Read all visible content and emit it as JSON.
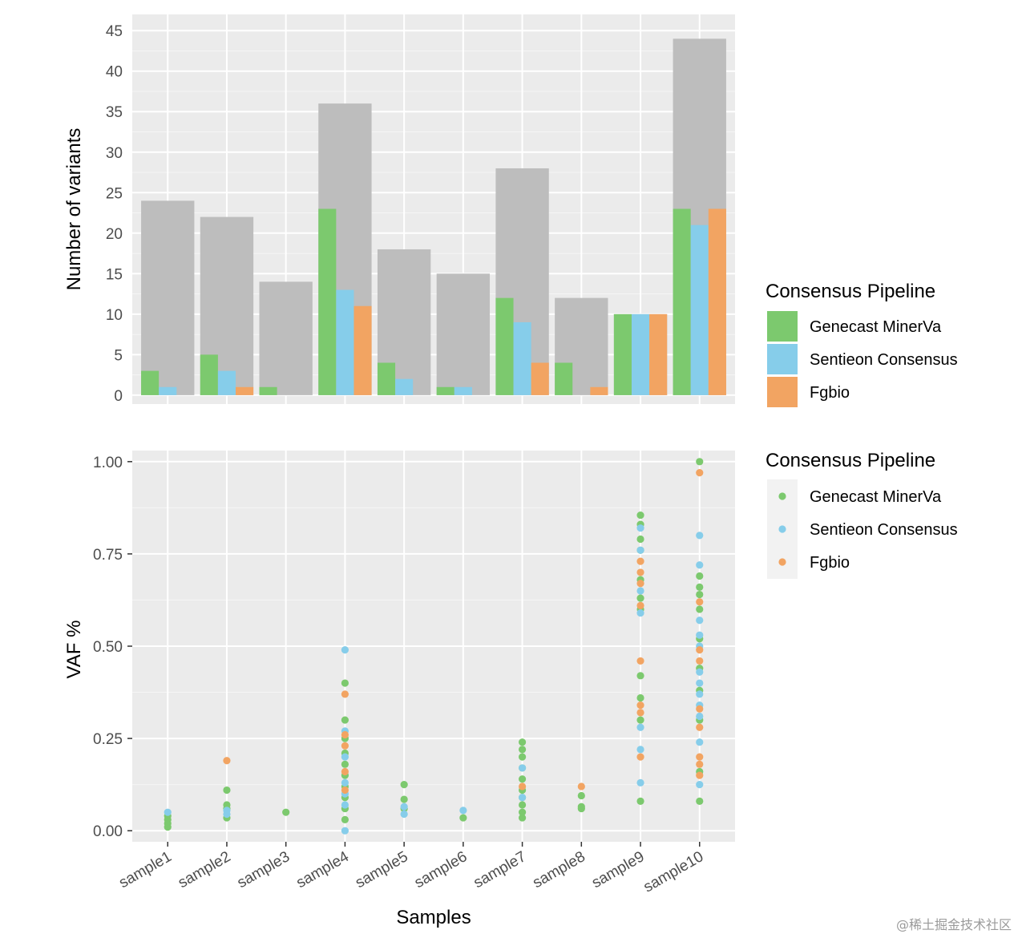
{
  "chart_data": [
    {
      "type": "bar",
      "categories": [
        "sample1",
        "sample2",
        "sample3",
        "sample4",
        "sample5",
        "sample6",
        "sample7",
        "sample8",
        "sample9",
        "sample10"
      ],
      "ylabel": "Number of variants",
      "xlabel": "",
      "ylim": [
        0,
        47
      ],
      "yticks": [
        0,
        5,
        10,
        15,
        20,
        25,
        30,
        35,
        40,
        45
      ],
      "grid": true,
      "total_bar_color": "#bdbdbd",
      "totals": [
        24,
        22,
        14,
        36,
        18,
        15,
        28,
        12,
        10,
        44
      ],
      "series": [
        {
          "name": "Genecast MinerVa",
          "color": "#7cc96e",
          "values": [
            3,
            5,
            1,
            23,
            4,
            1,
            12,
            4,
            10,
            23
          ]
        },
        {
          "name": "Sentieon Consensus",
          "color": "#86cdea",
          "values": [
            1,
            3,
            0,
            13,
            2,
            1,
            9,
            0,
            10,
            21
          ]
        },
        {
          "name": "Fgbio",
          "color": "#f2a462",
          "values": [
            0,
            1,
            0,
            11,
            0,
            0,
            4,
            1,
            10,
            23
          ]
        }
      ],
      "legend": {
        "title": "Consensus Pipeline",
        "placement": "right"
      }
    },
    {
      "type": "scatter",
      "categories": [
        "sample1",
        "sample2",
        "sample3",
        "sample4",
        "sample5",
        "sample6",
        "sample7",
        "sample8",
        "sample9",
        "sample10"
      ],
      "xlabel": "Samples",
      "ylabel": "VAF %",
      "ylim": [
        -0.03,
        1.03
      ],
      "yticks": [
        "0.00",
        "0.25",
        "0.50",
        "0.75",
        "1.00"
      ],
      "grid": true,
      "series": [
        {
          "name": "Genecast MinerVa",
          "color": "#7cc96e",
          "points": [
            [
              "sample1",
              0.01
            ],
            [
              "sample1",
              0.02
            ],
            [
              "sample1",
              0.03
            ],
            [
              "sample1",
              0.04
            ],
            [
              "sample2",
              0.035
            ],
            [
              "sample2",
              0.06
            ],
            [
              "sample2",
              0.07
            ],
            [
              "sample2",
              0.11
            ],
            [
              "sample3",
              0.05
            ],
            [
              "sample4",
              0.03
            ],
            [
              "sample4",
              0.06
            ],
            [
              "sample4",
              0.09
            ],
            [
              "sample4",
              0.12
            ],
            [
              "sample4",
              0.15
            ],
            [
              "sample4",
              0.18
            ],
            [
              "sample4",
              0.21
            ],
            [
              "sample4",
              0.25
            ],
            [
              "sample4",
              0.3
            ],
            [
              "sample4",
              0.4
            ],
            [
              "sample5",
              0.06
            ],
            [
              "sample5",
              0.085
            ],
            [
              "sample5",
              0.125
            ],
            [
              "sample6",
              0.035
            ],
            [
              "sample7",
              0.035
            ],
            [
              "sample7",
              0.05
            ],
            [
              "sample7",
              0.07
            ],
            [
              "sample7",
              0.09
            ],
            [
              "sample7",
              0.11
            ],
            [
              "sample7",
              0.14
            ],
            [
              "sample7",
              0.17
            ],
            [
              "sample7",
              0.2
            ],
            [
              "sample7",
              0.22
            ],
            [
              "sample7",
              0.24
            ],
            [
              "sample8",
              0.06
            ],
            [
              "sample8",
              0.065
            ],
            [
              "sample8",
              0.095
            ],
            [
              "sample9",
              0.08
            ],
            [
              "sample9",
              0.3
            ],
            [
              "sample9",
              0.36
            ],
            [
              "sample9",
              0.42
            ],
            [
              "sample9",
              0.6
            ],
            [
              "sample9",
              0.63
            ],
            [
              "sample9",
              0.68
            ],
            [
              "sample9",
              0.76
            ],
            [
              "sample9",
              0.79
            ],
            [
              "sample9",
              0.83
            ],
            [
              "sample9",
              0.855
            ],
            [
              "sample10",
              0.08
            ],
            [
              "sample10",
              0.16
            ],
            [
              "sample10",
              0.3
            ],
            [
              "sample10",
              0.38
            ],
            [
              "sample10",
              0.44
            ],
            [
              "sample10",
              0.52
            ],
            [
              "sample10",
              0.6
            ],
            [
              "sample10",
              0.64
            ],
            [
              "sample10",
              0.66
            ],
            [
              "sample10",
              0.69
            ],
            [
              "sample10",
              1.0
            ]
          ]
        },
        {
          "name": "Sentieon Consensus",
          "color": "#86cdea",
          "points": [
            [
              "sample1",
              0.05
            ],
            [
              "sample2",
              0.045
            ],
            [
              "sample2",
              0.055
            ],
            [
              "sample4",
              0.0
            ],
            [
              "sample4",
              0.07
            ],
            [
              "sample4",
              0.1
            ],
            [
              "sample4",
              0.13
            ],
            [
              "sample4",
              0.2
            ],
            [
              "sample4",
              0.27
            ],
            [
              "sample4",
              0.49
            ],
            [
              "sample5",
              0.045
            ],
            [
              "sample5",
              0.065
            ],
            [
              "sample6",
              0.055
            ],
            [
              "sample7",
              0.09
            ],
            [
              "sample7",
              0.17
            ],
            [
              "sample9",
              0.13
            ],
            [
              "sample9",
              0.22
            ],
            [
              "sample9",
              0.28
            ],
            [
              "sample9",
              0.59
            ],
            [
              "sample9",
              0.65
            ],
            [
              "sample9",
              0.76
            ],
            [
              "sample9",
              0.82
            ],
            [
              "sample10",
              0.125
            ],
            [
              "sample10",
              0.24
            ],
            [
              "sample10",
              0.31
            ],
            [
              "sample10",
              0.34
            ],
            [
              "sample10",
              0.37
            ],
            [
              "sample10",
              0.4
            ],
            [
              "sample10",
              0.43
            ],
            [
              "sample10",
              0.5
            ],
            [
              "sample10",
              0.53
            ],
            [
              "sample10",
              0.57
            ],
            [
              "sample10",
              0.72
            ],
            [
              "sample10",
              0.8
            ]
          ]
        },
        {
          "name": "Fgbio",
          "color": "#f2a462",
          "points": [
            [
              "sample2",
              0.19
            ],
            [
              "sample4",
              0.11
            ],
            [
              "sample4",
              0.16
            ],
            [
              "sample4",
              0.23
            ],
            [
              "sample4",
              0.26
            ],
            [
              "sample4",
              0.37
            ],
            [
              "sample7",
              0.12
            ],
            [
              "sample8",
              0.12
            ],
            [
              "sample9",
              0.2
            ],
            [
              "sample9",
              0.32
            ],
            [
              "sample9",
              0.34
            ],
            [
              "sample9",
              0.46
            ],
            [
              "sample9",
              0.61
            ],
            [
              "sample9",
              0.67
            ],
            [
              "sample9",
              0.7
            ],
            [
              "sample9",
              0.73
            ],
            [
              "sample10",
              0.15
            ],
            [
              "sample10",
              0.18
            ],
            [
              "sample10",
              0.2
            ],
            [
              "sample10",
              0.28
            ],
            [
              "sample10",
              0.33
            ],
            [
              "sample10",
              0.46
            ],
            [
              "sample10",
              0.49
            ],
            [
              "sample10",
              0.62
            ],
            [
              "sample10",
              0.97
            ]
          ]
        }
      ],
      "legend": {
        "title": "Consensus Pipeline",
        "placement": "right"
      }
    }
  ],
  "watermark": "@稀土掘金技术社区"
}
